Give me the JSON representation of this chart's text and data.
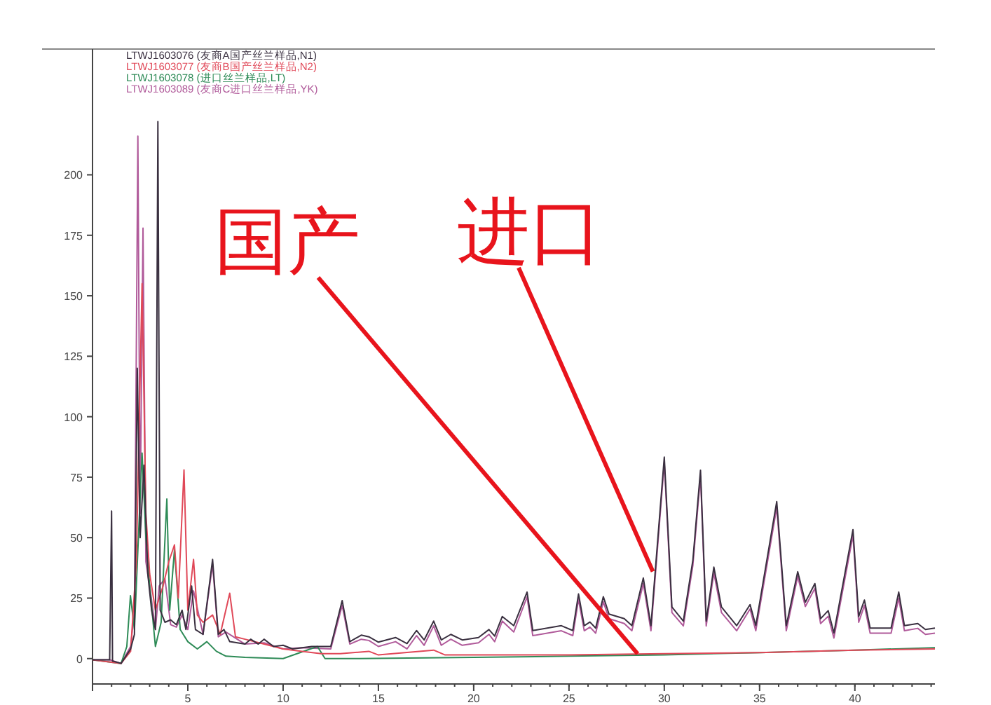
{
  "chart_data": {
    "type": "line",
    "xlim": [
      0,
      44.2
    ],
    "ylim": [
      -10.5,
      252
    ],
    "xticks": [
      {
        "value": 0,
        "label": null
      },
      5,
      10,
      15,
      20,
      25,
      30,
      35,
      40
    ],
    "yticks": [
      0,
      25,
      50,
      75,
      100,
      125,
      150,
      175,
      200
    ],
    "grid": false,
    "legend": "top left",
    "marker": "none",
    "line_style": "solid",
    "annotations": [
      {
        "text": "国产",
        "x": 28.6,
        "y": 2
      },
      {
        "text": "进口",
        "x": 29.4,
        "y": 36
      }
    ],
    "series": [
      {
        "name": "LTWJ1603076 (友商A国产丝兰样品,N1)",
        "color": "#3a3040",
        "x": [
          0,
          0.9,
          1.0,
          1.05,
          1.5,
          2.0,
          2.2,
          2.35,
          2.5,
          2.7,
          2.9,
          3.1,
          3.3,
          3.43,
          3.55,
          3.8,
          4.1,
          4.4,
          4.7,
          4.9,
          5.2,
          5.4,
          5.8,
          6.3,
          6.6,
          6.9,
          7.2,
          8,
          8.3,
          8.7,
          9.0,
          9.5,
          10,
          10.5,
          11.5,
          12.5,
          13.1,
          13.5,
          14.1,
          14.5,
          15,
          15.9,
          16.5,
          17.0,
          17.4,
          17.9,
          18.3,
          18.8,
          19.4,
          20.25,
          20.8,
          21.1,
          21.5,
          22.1,
          22.8,
          23.1,
          24.6,
          25.2,
          25.5,
          25.8,
          26.1,
          26.4,
          26.8,
          27.1,
          27.9,
          28.3,
          28.9,
          29.3,
          30.0,
          30.4,
          31.0,
          31.5,
          31.9,
          32.2,
          32.6,
          33.0,
          33.8,
          34.5,
          34.8,
          35.9,
          36.4,
          37.0,
          37.4,
          37.9,
          38.2,
          38.6,
          38.9,
          39.9,
          40.2,
          40.5,
          40.8,
          41.9,
          42.3,
          42.6,
          43.3,
          43.7,
          44.2
        ],
        "values": [
          -0.5,
          -0.5,
          61,
          -1,
          -2,
          4,
          10,
          120,
          50,
          80,
          35,
          20,
          12,
          222,
          20,
          15,
          16,
          14,
          20,
          12,
          30,
          12,
          10,
          41,
          10,
          12,
          7,
          6,
          8,
          6,
          8,
          5,
          5.5,
          4,
          5,
          5,
          24,
          7,
          9.7,
          9,
          6.8,
          8.7,
          6.2,
          11.6,
          7.7,
          15.5,
          7.7,
          10,
          7.7,
          8.7,
          12,
          9.3,
          17.4,
          13.6,
          27.5,
          11.6,
          13.6,
          11.6,
          26.7,
          13.6,
          15.1,
          12.6,
          25.6,
          18.4,
          16.5,
          13.6,
          33.3,
          13.6,
          83.3,
          21.3,
          15.5,
          40.7,
          77.9,
          15.5,
          37.8,
          21.3,
          13.6,
          22.3,
          13.6,
          64.9,
          13.6,
          35.9,
          23.3,
          31,
          16.5,
          19.8,
          10.6,
          53.3,
          17.4,
          24.2,
          12.6,
          12.6,
          27.5,
          13.6,
          14.5,
          12,
          12.6
        ]
      },
      {
        "name": "LTWJ1603077 (友商B国产丝兰样品,N2)",
        "color": "#e04858",
        "x": [
          0,
          1.5,
          2.0,
          2.3,
          2.6,
          2.8,
          3.0,
          3.3,
          3.7,
          4.0,
          4.3,
          4.5,
          4.8,
          5.0,
          5.3,
          5.5,
          5.8,
          6.3,
          6.7,
          7.2,
          7.5,
          8,
          9,
          10,
          11,
          12,
          13,
          14.5,
          15,
          17.9,
          18.5,
          20,
          22,
          25,
          30,
          35,
          40,
          44.2
        ],
        "values": [
          -0.5,
          -2,
          3,
          40,
          155,
          60,
          35,
          20,
          30,
          40,
          47,
          25,
          78,
          20,
          41,
          18,
          15,
          18,
          10,
          27,
          9,
          8,
          6,
          4,
          3,
          2,
          2,
          3,
          1.5,
          3.5,
          1.5,
          1.5,
          1.5,
          1.5,
          2,
          2.5,
          3.5,
          4
        ]
      },
      {
        "name": "LTWJ1603078 (进口丝兰样品,LT)",
        "color": "#2e8b57",
        "x": [
          0,
          1.5,
          1.8,
          1.99,
          2.2,
          2.6,
          2.8,
          3.0,
          3.3,
          3.6,
          3.9,
          4.05,
          4.3,
          4.6,
          5.0,
          5.5,
          6.0,
          6.5,
          7.0,
          8,
          10,
          11.8,
          12.2,
          14,
          20,
          25,
          30,
          35,
          40,
          44.2
        ],
        "values": [
          -0.5,
          -2,
          5,
          26,
          12,
          85,
          50,
          30,
          5,
          15,
          66,
          20,
          45,
          12,
          7,
          4,
          7,
          3,
          1,
          0.5,
          0,
          5,
          0,
          0,
          0.5,
          1,
          1.5,
          2.5,
          3.5,
          4.5
        ]
      },
      {
        "name": "LTWJ1603089 (友商C进口丝兰样品,YK)",
        "color": "#b05a9a",
        "x": [
          0,
          0.9,
          1.5,
          2.0,
          2.2,
          2.38,
          2.5,
          2.65,
          2.8,
          3.0,
          3.3,
          3.5,
          3.8,
          4.1,
          4.4,
          4.7,
          5.0,
          5.3,
          5.8,
          6.3,
          6.6,
          7.0,
          8,
          9,
          10,
          11,
          12.5,
          13.1,
          13.5,
          14.1,
          14.5,
          15,
          15.9,
          16.5,
          17.0,
          17.4,
          17.9,
          18.3,
          18.8,
          19.4,
          20.25,
          20.8,
          21.1,
          21.5,
          22.1,
          22.8,
          23.1,
          24.6,
          25.2,
          25.5,
          25.8,
          26.1,
          26.4,
          26.8,
          27.1,
          27.9,
          28.3,
          28.9,
          29.3,
          30.0,
          30.4,
          31.0,
          31.5,
          31.9,
          32.2,
          32.6,
          33.0,
          33.8,
          34.5,
          34.8,
          35.9,
          36.4,
          37.0,
          37.4,
          37.9,
          38.2,
          38.6,
          38.9,
          39.9,
          40.2,
          40.5,
          40.8,
          41.9,
          42.3,
          42.6,
          43.3,
          43.7,
          44.2
        ],
        "values": [
          -0.5,
          -0.5,
          -2,
          5,
          20,
          216,
          60,
          178,
          40,
          30,
          12,
          30,
          33,
          14,
          13,
          18,
          12,
          28,
          10,
          39,
          9,
          11,
          6,
          6.5,
          4,
          4.5,
          4,
          22,
          6,
          8,
          7.5,
          5,
          7,
          4,
          9.5,
          5.5,
          13.5,
          5.5,
          8,
          5.5,
          6.5,
          10,
          7,
          15.5,
          11,
          25.5,
          9.5,
          11.5,
          9.5,
          24.5,
          11.5,
          13,
          10.5,
          23.5,
          16.5,
          14.5,
          11.5,
          31,
          11.5,
          81,
          19,
          13.5,
          38.5,
          75.5,
          13.5,
          35.5,
          19,
          11.5,
          20.5,
          11.5,
          62.5,
          11.5,
          34,
          21.5,
          29,
          14.5,
          17.5,
          8.5,
          51,
          15,
          22,
          10.5,
          10.5,
          25,
          11.5,
          12.5,
          10,
          10.5
        ]
      }
    ]
  }
}
